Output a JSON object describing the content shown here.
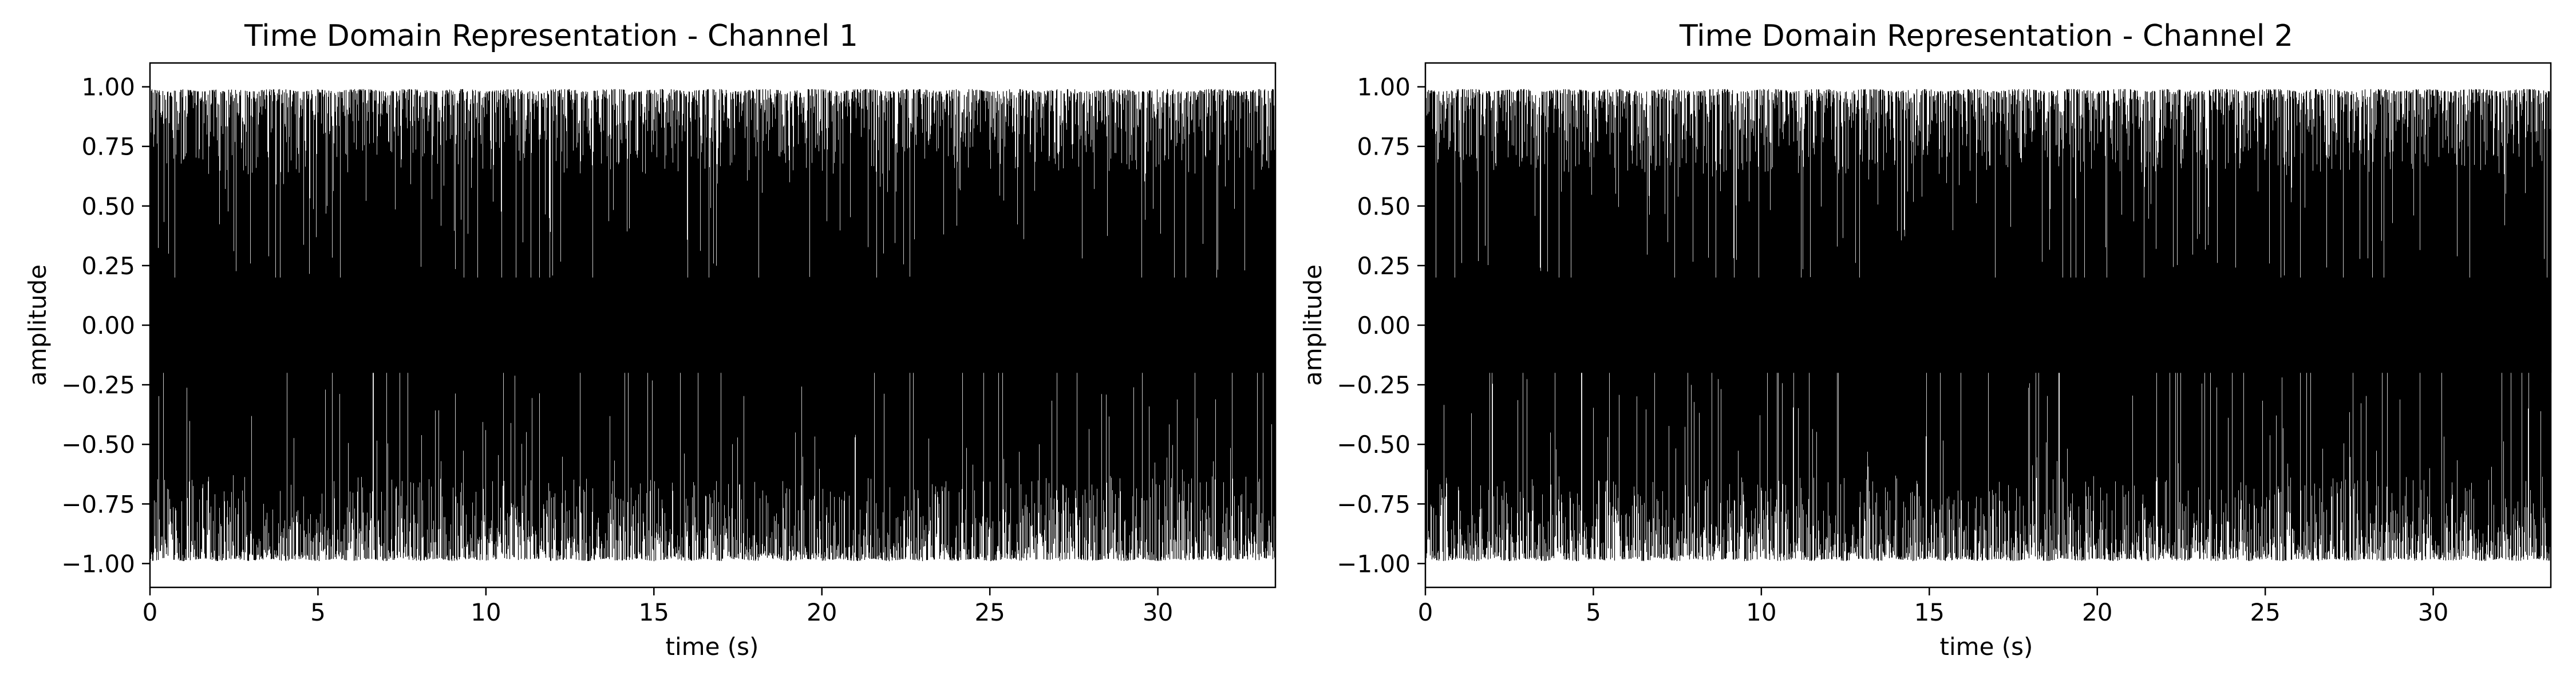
{
  "chart_data": [
    {
      "type": "line",
      "title": "Time Domain Representation - Channel 1",
      "xlabel": "time (s)",
      "ylabel": "amplitude",
      "xlim": [
        0,
        33.5
      ],
      "ylim": [
        -1.1,
        1.1
      ],
      "xticks": [
        0,
        5,
        10,
        15,
        20,
        25,
        30
      ],
      "xtick_labels": [
        "0",
        "5",
        "10",
        "15",
        "20",
        "25",
        "30"
      ],
      "yticks": [
        -1.0,
        -0.75,
        -0.5,
        -0.25,
        0.0,
        0.25,
        0.5,
        0.75,
        1.0
      ],
      "ytick_labels": [
        "−1.00",
        "−0.75",
        "−0.50",
        "−0.25",
        "0.00",
        "0.25",
        "0.50",
        "0.75",
        "1.00"
      ],
      "grid": false,
      "line_color": "#000000",
      "series": [
        {
          "description": "dense audio waveform spanning approximately -1.0 to 1.0 across 0 to 33.5 s",
          "x": [
            0,
            0.5,
            1.0,
            1.5,
            2.0,
            2.5,
            3.0,
            3.5,
            4.0,
            4.5,
            5.0,
            5.5,
            6.0,
            6.5,
            7.0,
            7.5,
            8.0,
            8.5,
            9.0,
            9.5,
            10.0,
            10.5,
            11.0,
            11.5,
            12.0,
            12.5,
            13.0,
            13.5,
            14.0,
            14.5,
            15.0,
            15.5,
            16.0,
            16.5,
            17.0,
            17.5,
            18.0,
            18.5,
            19.0,
            19.5,
            20.0,
            20.5,
            21.0,
            21.5,
            22.0,
            22.5,
            23.0,
            23.5,
            24.0,
            24.5,
            25.0,
            25.5,
            26.0,
            26.5,
            27.0,
            27.5,
            28.0,
            28.5,
            29.0,
            29.5,
            30.0,
            30.5,
            31.0,
            31.5,
            32.0,
            32.5,
            33.0,
            33.5
          ],
          "upper_envelope": [
            0.99,
            0.98,
            0.99,
            0.98,
            0.99,
            0.99,
            0.98,
            0.99,
            0.99,
            0.98,
            0.99,
            0.98,
            0.99,
            0.99,
            0.98,
            0.99,
            0.99,
            0.98,
            0.99,
            0.99,
            0.98,
            0.99,
            0.99,
            0.98,
            0.99,
            0.99,
            0.98,
            0.99,
            0.99,
            0.98,
            0.99,
            0.99,
            0.98,
            0.99,
            0.99,
            0.98,
            0.99,
            0.99,
            0.98,
            0.99,
            0.99,
            0.98,
            0.99,
            0.99,
            0.98,
            0.99,
            0.99,
            0.98,
            0.99,
            0.99,
            0.98,
            0.99,
            0.99,
            0.98,
            0.99,
            0.99,
            0.98,
            0.99,
            0.99,
            0.98,
            0.99,
            0.99,
            0.98,
            0.99,
            0.99,
            0.98,
            0.99,
            0.99
          ],
          "lower_envelope": [
            -0.99,
            -0.98,
            -0.99,
            -0.98,
            -0.99,
            -0.98,
            -0.99,
            -0.98,
            -0.99,
            -0.98,
            -0.99,
            -0.98,
            -0.99,
            -0.98,
            -0.99,
            -0.98,
            -0.99,
            -0.98,
            -0.99,
            -0.98,
            -0.99,
            -0.98,
            -0.99,
            -0.98,
            -0.99,
            -0.98,
            -0.99,
            -0.98,
            -0.99,
            -0.98,
            -0.99,
            -0.98,
            -0.99,
            -0.98,
            -0.99,
            -0.98,
            -0.99,
            -0.98,
            -0.99,
            -0.98,
            -0.99,
            -0.98,
            -0.99,
            -0.98,
            -0.99,
            -0.98,
            -0.99,
            -0.98,
            -0.99,
            -0.98,
            -0.99,
            -0.98,
            -0.99,
            -0.98,
            -0.99,
            -0.98,
            -0.99,
            -0.98,
            -0.99,
            -0.98,
            -0.99,
            -0.98,
            -0.99,
            -0.98,
            -0.99,
            -0.98,
            -0.99,
            -0.98
          ]
        }
      ]
    },
    {
      "type": "line",
      "title": "Time Domain Representation - Channel 2",
      "xlabel": "time (s)",
      "ylabel": "amplitude",
      "xlim": [
        0,
        33.5
      ],
      "ylim": [
        -1.1,
        1.1
      ],
      "xticks": [
        0,
        5,
        10,
        15,
        20,
        25,
        30
      ],
      "xtick_labels": [
        "0",
        "5",
        "10",
        "15",
        "20",
        "25",
        "30"
      ],
      "yticks": [
        -1.0,
        -0.75,
        -0.5,
        -0.25,
        0.0,
        0.25,
        0.5,
        0.75,
        1.0
      ],
      "ytick_labels": [
        "−1.00",
        "−0.75",
        "−0.50",
        "−0.25",
        "0.00",
        "0.25",
        "0.50",
        "0.75",
        "1.00"
      ],
      "grid": false,
      "line_color": "#000000",
      "series": [
        {
          "description": "dense audio waveform spanning approximately -1.0 to 1.0 across 0 to 33.5 s",
          "x": [
            0,
            0.5,
            1.0,
            1.5,
            2.0,
            2.5,
            3.0,
            3.5,
            4.0,
            4.5,
            5.0,
            5.5,
            6.0,
            6.5,
            7.0,
            7.5,
            8.0,
            8.5,
            9.0,
            9.5,
            10.0,
            10.5,
            11.0,
            11.5,
            12.0,
            12.5,
            13.0,
            13.5,
            14.0,
            14.5,
            15.0,
            15.5,
            16.0,
            16.5,
            17.0,
            17.5,
            18.0,
            18.5,
            19.0,
            19.5,
            20.0,
            20.5,
            21.0,
            21.5,
            22.0,
            22.5,
            23.0,
            23.5,
            24.0,
            24.5,
            25.0,
            25.5,
            26.0,
            26.5,
            27.0,
            27.5,
            28.0,
            28.5,
            29.0,
            29.5,
            30.0,
            30.5,
            31.0,
            31.5,
            32.0,
            32.5,
            33.0,
            33.5
          ],
          "upper_envelope": [
            0.99,
            0.98,
            0.99,
            0.99,
            0.98,
            0.99,
            0.99,
            0.98,
            0.99,
            0.99,
            0.98,
            0.99,
            0.99,
            0.98,
            0.99,
            0.99,
            0.98,
            0.99,
            0.99,
            0.98,
            0.99,
            0.99,
            0.98,
            0.99,
            0.99,
            0.98,
            0.99,
            0.99,
            0.98,
            0.99,
            0.99,
            0.98,
            0.99,
            0.99,
            0.98,
            0.99,
            0.99,
            0.98,
            0.99,
            0.99,
            0.98,
            0.99,
            0.99,
            0.98,
            0.99,
            0.99,
            0.98,
            0.99,
            0.99,
            0.98,
            0.99,
            0.99,
            0.98,
            0.99,
            0.99,
            0.98,
            0.99,
            0.99,
            0.98,
            0.99,
            0.99,
            0.98,
            0.99,
            0.99,
            0.98,
            0.99,
            0.99,
            0.98
          ],
          "lower_envelope": [
            -0.98,
            -0.99,
            -0.98,
            -0.99,
            -0.98,
            -0.99,
            -0.98,
            -0.99,
            -0.98,
            -0.99,
            -0.98,
            -0.99,
            -0.98,
            -0.99,
            -0.98,
            -0.99,
            -0.98,
            -0.99,
            -0.98,
            -0.99,
            -0.98,
            -0.99,
            -0.98,
            -0.99,
            -0.98,
            -0.99,
            -0.98,
            -0.99,
            -0.98,
            -0.99,
            -0.98,
            -0.99,
            -0.98,
            -0.99,
            -0.98,
            -0.99,
            -0.98,
            -0.99,
            -0.98,
            -0.99,
            -0.98,
            -0.99,
            -0.98,
            -0.99,
            -0.98,
            -0.99,
            -0.98,
            -0.99,
            -0.98,
            -0.99,
            -0.98,
            -0.99,
            -0.98,
            -0.99,
            -0.98,
            -0.99,
            -0.98,
            -0.99,
            -0.98,
            -0.99,
            -0.98,
            -0.99,
            -0.98,
            -0.99,
            -0.98,
            -0.99,
            -0.98,
            -0.99
          ]
        }
      ]
    }
  ]
}
